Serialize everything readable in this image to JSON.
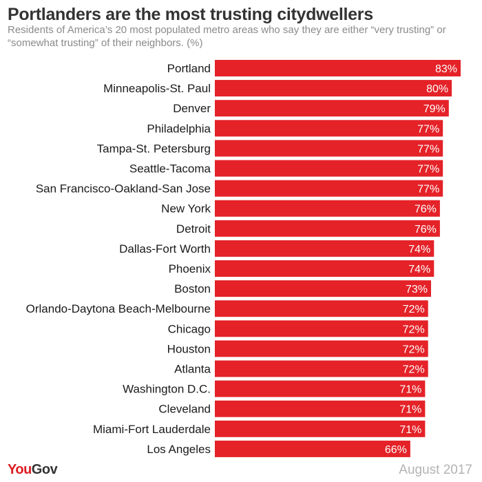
{
  "header": {
    "title": "Portlanders are the most trusting citydwellers",
    "subtitle": "Residents of America’s 20 most populated metro areas who say they are either “very trusting” or “somewhat trusting” of their neighbors. (%)"
  },
  "footer": {
    "logo": {
      "you": "You",
      "gov": "Gov"
    },
    "date": "August 2017"
  },
  "colors": {
    "bar": "#e42228",
    "label_text": "#ffffff",
    "category_text": "#1a1a1a"
  },
  "chart_data": {
    "type": "bar",
    "orientation": "horizontal",
    "title": "Portlanders are the most trusting citydwellers",
    "subtitle": "Residents of America’s 20 most populated metro areas who say they are either “very trusting” or “somewhat trusting” of their neighbors. (%)",
    "categories": [
      "Portland",
      "Minneapolis-St. Paul",
      "Denver",
      "Philadelphia",
      "Tampa-St. Petersburg",
      "Seattle-Tacoma",
      "San Francisco-Oakland-San Jose",
      "New York",
      "Detroit",
      "Dallas-Fort Worth",
      "Phoenix",
      "Boston",
      "Orlando-Daytona Beach-Melbourne",
      "Chicago",
      "Houston",
      "Atlanta",
      "Washington D.C.",
      "Cleveland",
      "Miami-Fort Lauderdale",
      "Los Angeles"
    ],
    "values": [
      83,
      80,
      79,
      77,
      77,
      77,
      77,
      76,
      76,
      74,
      74,
      73,
      72,
      72,
      72,
      72,
      71,
      71,
      71,
      66
    ],
    "value_labels": [
      "83%",
      "80%",
      "79%",
      "77%",
      "77%",
      "77%",
      "77%",
      "76%",
      "76%",
      "74%",
      "74%",
      "73%",
      "72%",
      "72%",
      "72%",
      "72%",
      "71%",
      "71%",
      "71%",
      "66%"
    ],
    "unit": "%",
    "xlim": [
      0,
      83
    ],
    "grid": false,
    "legend": "none"
  }
}
